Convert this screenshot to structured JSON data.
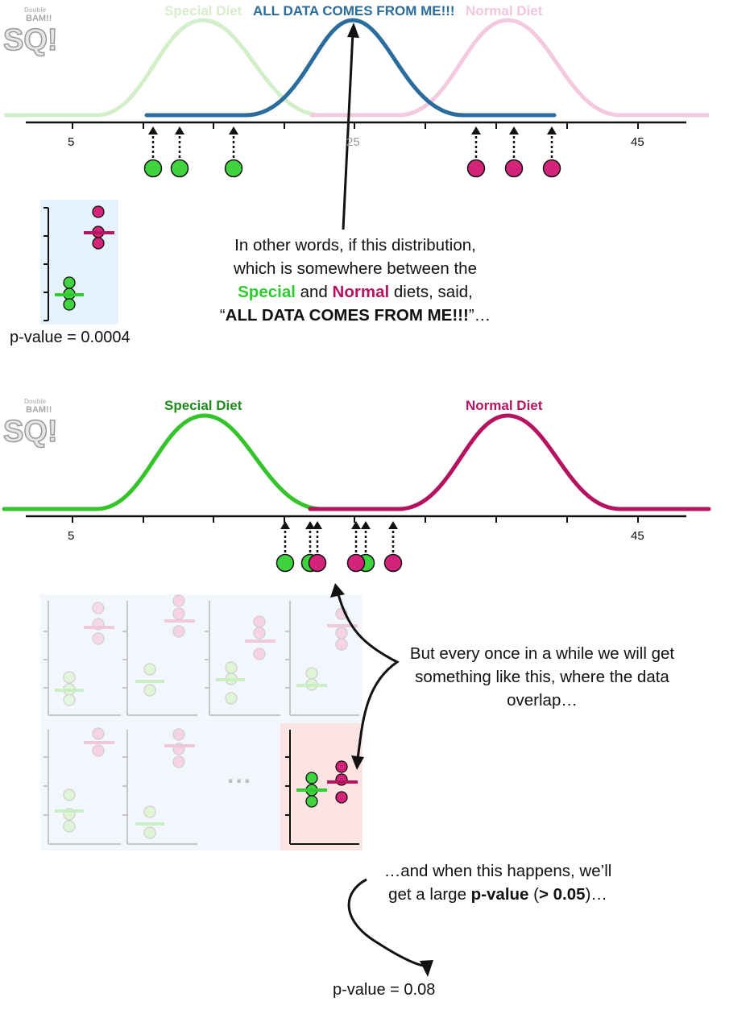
{
  "top": {
    "labels": {
      "special": "Special Diet",
      "all": "ALL DATA COMES FROM ME!!!",
      "normal": "Normal Diet"
    },
    "ticks": [
      "5",
      "25",
      "45"
    ],
    "pvalue": "p-value = 0.0004",
    "caption": {
      "line1": "In other words, if this distribution,",
      "line2": "which is somewhere between the",
      "special": "Special",
      "and": " and ",
      "normal": "Normal",
      "said": " diets, said,",
      "quote_open": "“",
      "quote": "ALL DATA COMES FROM ME!!!",
      "quote_close": "”…"
    }
  },
  "bottom": {
    "labels": {
      "special": "Special Diet",
      "normal": "Normal Diet"
    },
    "ticks": [
      "5",
      "45"
    ],
    "caption": {
      "line1": "But every once in a while we will get",
      "line2": "something like this, where the data",
      "line3": "overlap…"
    },
    "ellipsis": "...",
    "caption2": {
      "line1": "…and when this happens, we’ll",
      "pre": "get a large ",
      "bold1": "p-value",
      "mid": " (",
      "bold2": "> 0.05",
      "post": ")…"
    },
    "pvalue": "p-value = 0.08"
  },
  "logo": {
    "small": "Double",
    "bam": "BAM!!",
    "text": "SQ!"
  },
  "colors": {
    "green": "#2fcc2f",
    "green_dark": "#1e8a1e",
    "magenta": "#b5135f",
    "blue": "#2a6c9c",
    "green_faded": "#cdeec3",
    "magenta_faded": "#f2c6dc",
    "panel_blue": "#e5f4fc",
    "panel_grid": "#f2f6fc",
    "panel_red": "#fbe4e1"
  }
}
